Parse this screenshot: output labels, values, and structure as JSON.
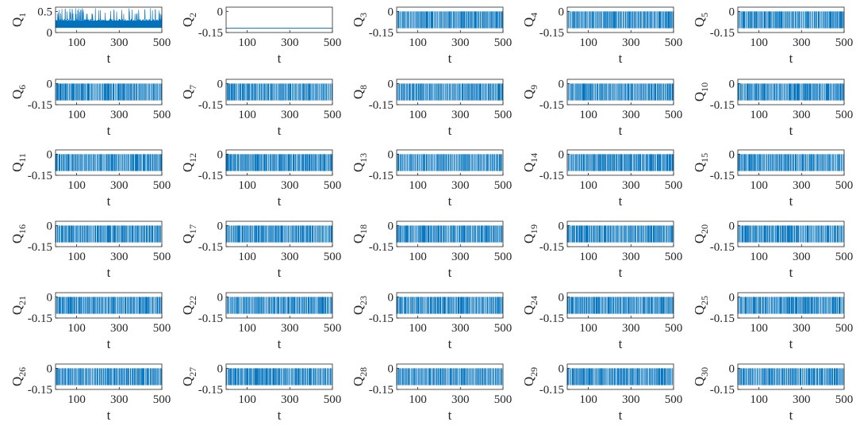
{
  "chart_data": {
    "type": "line",
    "layout": "6x5 grid of subplots",
    "line_color": "#0072BD",
    "xlabel": "t",
    "xlim": [
      1,
      500
    ],
    "xticks": [
      "100",
      "300",
      "500"
    ],
    "panels": [
      {
        "ylabel_main": "Q",
        "ylabel_sub": "1",
        "ylim": [
          0,
          0.6
        ],
        "yticks": [
          {
            "v": 0.5,
            "label": "0.5"
          },
          {
            "v": 0,
            "label": "0"
          }
        ],
        "signal": "positive-spikes",
        "baseline": 0.12
      },
      {
        "ylabel_main": "Q",
        "ylabel_sub": "2",
        "ylim": [
          -0.15,
          0.03
        ],
        "yticks": [
          {
            "v": 0,
            "label": "0"
          },
          {
            "v": -0.15,
            "label": "-0.15"
          }
        ],
        "signal": "constant",
        "value": -0.12
      },
      {
        "ylabel_main": "Q",
        "ylabel_sub": "3",
        "ylim": [
          -0.15,
          0.03
        ],
        "yticks": [
          {
            "v": 0,
            "label": "0"
          },
          {
            "v": -0.15,
            "label": "-0.15"
          }
        ],
        "signal": "switching",
        "values": [
          -0.12,
          0
        ]
      },
      {
        "ylabel_main": "Q",
        "ylabel_sub": "4",
        "ylim": [
          -0.15,
          0.03
        ],
        "yticks": [
          {
            "v": 0,
            "label": "0"
          },
          {
            "v": -0.15,
            "label": "-0.15"
          }
        ],
        "signal": "switching",
        "values": [
          -0.12,
          0
        ]
      },
      {
        "ylabel_main": "Q",
        "ylabel_sub": "5",
        "ylim": [
          -0.15,
          0.03
        ],
        "yticks": [
          {
            "v": 0,
            "label": "0"
          },
          {
            "v": -0.15,
            "label": "-0.15"
          }
        ],
        "signal": "switching",
        "values": [
          -0.12,
          0
        ]
      },
      {
        "ylabel_main": "Q",
        "ylabel_sub": "6",
        "ylim": [
          -0.15,
          0.03
        ],
        "yticks": [
          {
            "v": 0,
            "label": "0"
          },
          {
            "v": -0.15,
            "label": "-0.15"
          }
        ],
        "signal": "switching",
        "values": [
          -0.12,
          0
        ]
      },
      {
        "ylabel_main": "Q",
        "ylabel_sub": "7",
        "ylim": [
          -0.15,
          0.03
        ],
        "yticks": [
          {
            "v": 0,
            "label": "0"
          },
          {
            "v": -0.15,
            "label": "-0.15"
          }
        ],
        "signal": "switching",
        "values": [
          -0.12,
          0
        ]
      },
      {
        "ylabel_main": "Q",
        "ylabel_sub": "8",
        "ylim": [
          -0.15,
          0.03
        ],
        "yticks": [
          {
            "v": 0,
            "label": "0"
          },
          {
            "v": -0.15,
            "label": "-0.15"
          }
        ],
        "signal": "switching",
        "values": [
          -0.12,
          0
        ]
      },
      {
        "ylabel_main": "Q",
        "ylabel_sub": "9",
        "ylim": [
          -0.15,
          0.03
        ],
        "yticks": [
          {
            "v": 0,
            "label": "0"
          },
          {
            "v": -0.15,
            "label": "-0.15"
          }
        ],
        "signal": "switching",
        "values": [
          -0.12,
          0
        ]
      },
      {
        "ylabel_main": "Q",
        "ylabel_sub": "10",
        "ylim": [
          -0.15,
          0.03
        ],
        "yticks": [
          {
            "v": 0,
            "label": "0"
          },
          {
            "v": -0.15,
            "label": "-0.15"
          }
        ],
        "signal": "switching",
        "values": [
          -0.12,
          0
        ]
      },
      {
        "ylabel_main": "Q",
        "ylabel_sub": "11",
        "ylim": [
          -0.15,
          0.03
        ],
        "yticks": [
          {
            "v": 0,
            "label": "0"
          },
          {
            "v": -0.15,
            "label": "-0.15"
          }
        ],
        "signal": "switching",
        "values": [
          -0.12,
          0
        ]
      },
      {
        "ylabel_main": "Q",
        "ylabel_sub": "12",
        "ylim": [
          -0.15,
          0.03
        ],
        "yticks": [
          {
            "v": 0,
            "label": "0"
          },
          {
            "v": -0.15,
            "label": "-0.15"
          }
        ],
        "signal": "switching",
        "values": [
          -0.12,
          0
        ]
      },
      {
        "ylabel_main": "Q",
        "ylabel_sub": "13",
        "ylim": [
          -0.15,
          0.03
        ],
        "yticks": [
          {
            "v": 0,
            "label": "0"
          },
          {
            "v": -0.15,
            "label": "-0.15"
          }
        ],
        "signal": "switching",
        "values": [
          -0.12,
          0
        ]
      },
      {
        "ylabel_main": "Q",
        "ylabel_sub": "14",
        "ylim": [
          -0.15,
          0.03
        ],
        "yticks": [
          {
            "v": 0,
            "label": "0"
          },
          {
            "v": -0.15,
            "label": "-0.15"
          }
        ],
        "signal": "switching",
        "values": [
          -0.12,
          0
        ]
      },
      {
        "ylabel_main": "Q",
        "ylabel_sub": "15",
        "ylim": [
          -0.15,
          0.03
        ],
        "yticks": [
          {
            "v": 0,
            "label": "0"
          },
          {
            "v": -0.15,
            "label": "-0.15"
          }
        ],
        "signal": "switching",
        "values": [
          -0.12,
          0
        ]
      },
      {
        "ylabel_main": "Q",
        "ylabel_sub": "16",
        "ylim": [
          -0.15,
          0.03
        ],
        "yticks": [
          {
            "v": 0,
            "label": "0"
          },
          {
            "v": -0.15,
            "label": "-0.15"
          }
        ],
        "signal": "switching",
        "values": [
          -0.12,
          0
        ]
      },
      {
        "ylabel_main": "Q",
        "ylabel_sub": "17",
        "ylim": [
          -0.15,
          0.03
        ],
        "yticks": [
          {
            "v": 0,
            "label": "0"
          },
          {
            "v": -0.15,
            "label": "-0.15"
          }
        ],
        "signal": "switching",
        "values": [
          -0.12,
          0
        ]
      },
      {
        "ylabel_main": "Q",
        "ylabel_sub": "18",
        "ylim": [
          -0.15,
          0.03
        ],
        "yticks": [
          {
            "v": 0,
            "label": "0"
          },
          {
            "v": -0.15,
            "label": "-0.15"
          }
        ],
        "signal": "switching",
        "values": [
          -0.12,
          0
        ]
      },
      {
        "ylabel_main": "Q",
        "ylabel_sub": "19",
        "ylim": [
          -0.15,
          0.03
        ],
        "yticks": [
          {
            "v": 0,
            "label": "0"
          },
          {
            "v": -0.15,
            "label": "-0.15"
          }
        ],
        "signal": "switching",
        "values": [
          -0.12,
          0
        ]
      },
      {
        "ylabel_main": "Q",
        "ylabel_sub": "20",
        "ylim": [
          -0.15,
          0.03
        ],
        "yticks": [
          {
            "v": 0,
            "label": "0"
          },
          {
            "v": -0.15,
            "label": "-0.15"
          }
        ],
        "signal": "switching",
        "values": [
          -0.12,
          0
        ]
      },
      {
        "ylabel_main": "Q",
        "ylabel_sub": "21",
        "ylim": [
          -0.15,
          0.03
        ],
        "yticks": [
          {
            "v": 0,
            "label": "0"
          },
          {
            "v": -0.15,
            "label": "-0.15"
          }
        ],
        "signal": "switching",
        "values": [
          -0.12,
          0
        ]
      },
      {
        "ylabel_main": "Q",
        "ylabel_sub": "22",
        "ylim": [
          -0.15,
          0.03
        ],
        "yticks": [
          {
            "v": 0,
            "label": "0"
          },
          {
            "v": -0.15,
            "label": "-0.15"
          }
        ],
        "signal": "switching",
        "values": [
          -0.12,
          0
        ]
      },
      {
        "ylabel_main": "Q",
        "ylabel_sub": "23",
        "ylim": [
          -0.15,
          0.03
        ],
        "yticks": [
          {
            "v": 0,
            "label": "0"
          },
          {
            "v": -0.15,
            "label": "-0.15"
          }
        ],
        "signal": "switching",
        "values": [
          -0.12,
          0
        ]
      },
      {
        "ylabel_main": "Q",
        "ylabel_sub": "24",
        "ylim": [
          -0.15,
          0.03
        ],
        "yticks": [
          {
            "v": 0,
            "label": "0"
          },
          {
            "v": -0.15,
            "label": "-0.15"
          }
        ],
        "signal": "switching",
        "values": [
          -0.12,
          0
        ]
      },
      {
        "ylabel_main": "Q",
        "ylabel_sub": "25",
        "ylim": [
          -0.15,
          0.03
        ],
        "yticks": [
          {
            "v": 0,
            "label": "0"
          },
          {
            "v": -0.15,
            "label": "-0.15"
          }
        ],
        "signal": "switching",
        "values": [
          -0.12,
          0
        ]
      },
      {
        "ylabel_main": "Q",
        "ylabel_sub": "26",
        "ylim": [
          -0.15,
          0.03
        ],
        "yticks": [
          {
            "v": 0,
            "label": "0"
          },
          {
            "v": -0.15,
            "label": "-0.15"
          }
        ],
        "signal": "switching",
        "values": [
          -0.12,
          0
        ]
      },
      {
        "ylabel_main": "Q",
        "ylabel_sub": "27",
        "ylim": [
          -0.15,
          0.03
        ],
        "yticks": [
          {
            "v": 0,
            "label": "0"
          },
          {
            "v": -0.15,
            "label": "-0.15"
          }
        ],
        "signal": "switching",
        "values": [
          -0.12,
          0
        ]
      },
      {
        "ylabel_main": "Q",
        "ylabel_sub": "28",
        "ylim": [
          -0.15,
          0.03
        ],
        "yticks": [
          {
            "v": 0,
            "label": "0"
          },
          {
            "v": -0.15,
            "label": "-0.15"
          }
        ],
        "signal": "switching",
        "values": [
          -0.12,
          0
        ]
      },
      {
        "ylabel_main": "Q",
        "ylabel_sub": "29",
        "ylim": [
          -0.15,
          0.03
        ],
        "yticks": [
          {
            "v": 0,
            "label": "0"
          },
          {
            "v": -0.15,
            "label": "-0.15"
          }
        ],
        "signal": "switching",
        "values": [
          -0.12,
          0
        ]
      },
      {
        "ylabel_main": "Q",
        "ylabel_sub": "30",
        "ylim": [
          -0.15,
          0.03
        ],
        "yticks": [
          {
            "v": 0,
            "label": "0"
          },
          {
            "v": -0.15,
            "label": "-0.15"
          }
        ],
        "signal": "switching",
        "values": [
          -0.12,
          0
        ]
      }
    ]
  }
}
